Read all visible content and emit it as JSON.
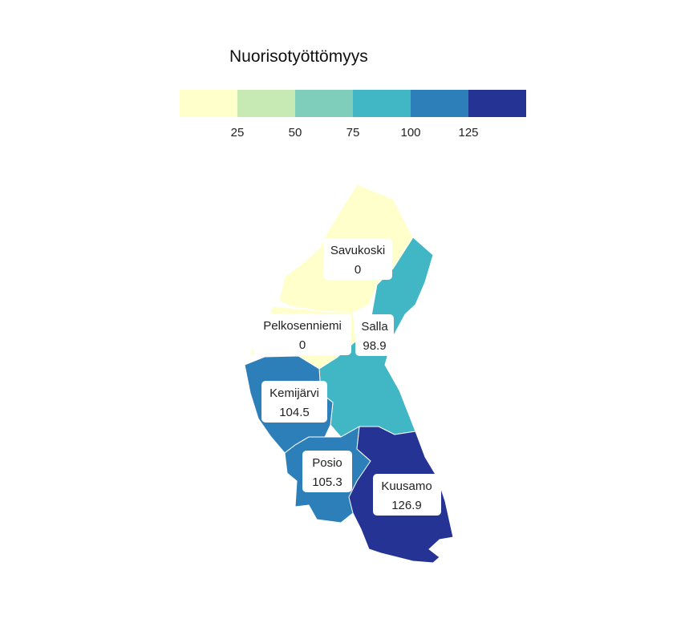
{
  "legend": {
    "title": "Nuorisotyöttömyys",
    "ticks": [
      "25",
      "50",
      "75",
      "100",
      "125"
    ],
    "colors": [
      "#ffffcc",
      "#c7e9b4",
      "#7fcdbb",
      "#41b6c4",
      "#2c7fb8",
      "#253494"
    ],
    "breaks": [
      0,
      25,
      50,
      75,
      100,
      125,
      150
    ]
  },
  "chart_data": {
    "type": "choropleth",
    "value_name": "Nuorisotyöttömyys",
    "regions": [
      {
        "name": "Savukoski",
        "value": "0"
      },
      {
        "name": "Pelkosenniemi",
        "value": "0"
      },
      {
        "name": "Salla",
        "value": "98.9"
      },
      {
        "name": "Kemijärvi",
        "value": "104.5"
      },
      {
        "name": "Posio",
        "value": "105.3"
      },
      {
        "name": "Kuusamo",
        "value": "126.9"
      }
    ]
  }
}
